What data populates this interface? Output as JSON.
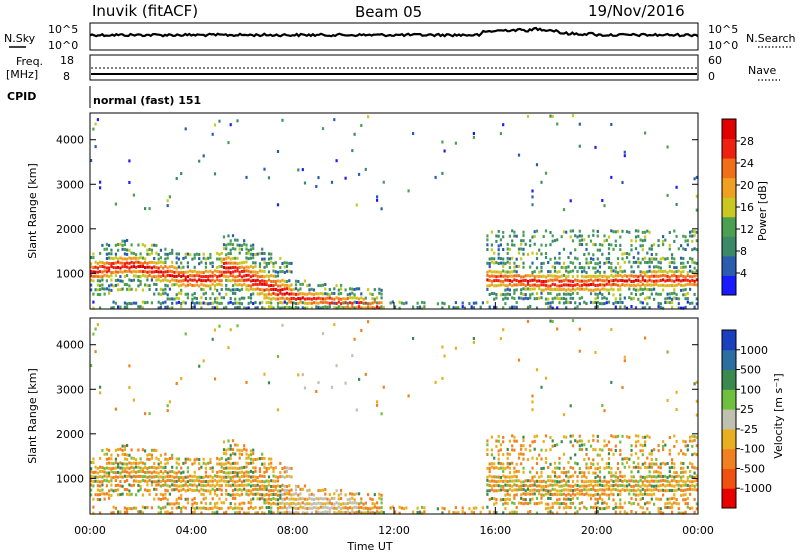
{
  "header": {
    "station": "Inuvik (fitACF)",
    "beam": "Beam 05",
    "date": "19/Nov/2016"
  },
  "top_panel": {
    "left_label": "N.Sky",
    "right_label": "N.Search",
    "left_ticks": [
      "10^5",
      "10^0"
    ],
    "right_ticks": [
      "10^5",
      "10^0"
    ]
  },
  "freq_panel": {
    "left_label_line1": "Freq.",
    "left_label_line2": "[MHz]",
    "right_label": "Nave",
    "left_ticks": [
      "18",
      "8"
    ],
    "right_ticks": [
      "60",
      "0"
    ]
  },
  "cpid": {
    "label": "CPID",
    "mode_text": "normal (fast) 151"
  },
  "colors": {
    "power_scale": [
      "#1a1aff",
      "#2a5caf",
      "#3a8a6a",
      "#4aa050",
      "#c8c820",
      "#f0a020",
      "#f07018",
      "#f02010",
      "#e00000"
    ],
    "velocity_scale": [
      "#1a3fbf",
      "#2a6fa0",
      "#3a8a50",
      "#70c040",
      "#c0c0b0",
      "#e8b020",
      "#f08020",
      "#f05010",
      "#e80000"
    ]
  },
  "chart_data": [
    {
      "type": "heatmap",
      "quantity": "power",
      "ylabel": "Slant Range [km]",
      "xlabel": "",
      "y_ticks": [
        "1000",
        "2000",
        "3000",
        "4000"
      ],
      "ylim": [
        200,
        4600
      ],
      "colorbar_label": "Power [dB]",
      "colorbar_ticks": [
        "4",
        "8",
        "12",
        "16",
        "20",
        "24",
        "28"
      ],
      "colorbar_range": [
        0,
        32
      ],
      "x_ticks": [
        "00:00",
        "04:00",
        "08:00",
        "12:00",
        "16:00",
        "20:00",
        "00:00"
      ],
      "xlim_hours": [
        0,
        24
      ]
    },
    {
      "type": "heatmap",
      "quantity": "velocity",
      "ylabel": "Slant Range [km]",
      "xlabel": "Time UT",
      "y_ticks": [
        "1000",
        "2000",
        "3000",
        "4000"
      ],
      "ylim": [
        200,
        4600
      ],
      "colorbar_label": "Velocity [m s⁻¹]",
      "colorbar_ticks": [
        "1000",
        "500",
        "100",
        "25",
        "-25",
        "-100",
        "-500",
        "-1000"
      ],
      "x_ticks": [
        "00:00",
        "04:00",
        "08:00",
        "12:00",
        "16:00",
        "20:00",
        "00:00"
      ],
      "xlim_hours": [
        0,
        24
      ]
    }
  ]
}
